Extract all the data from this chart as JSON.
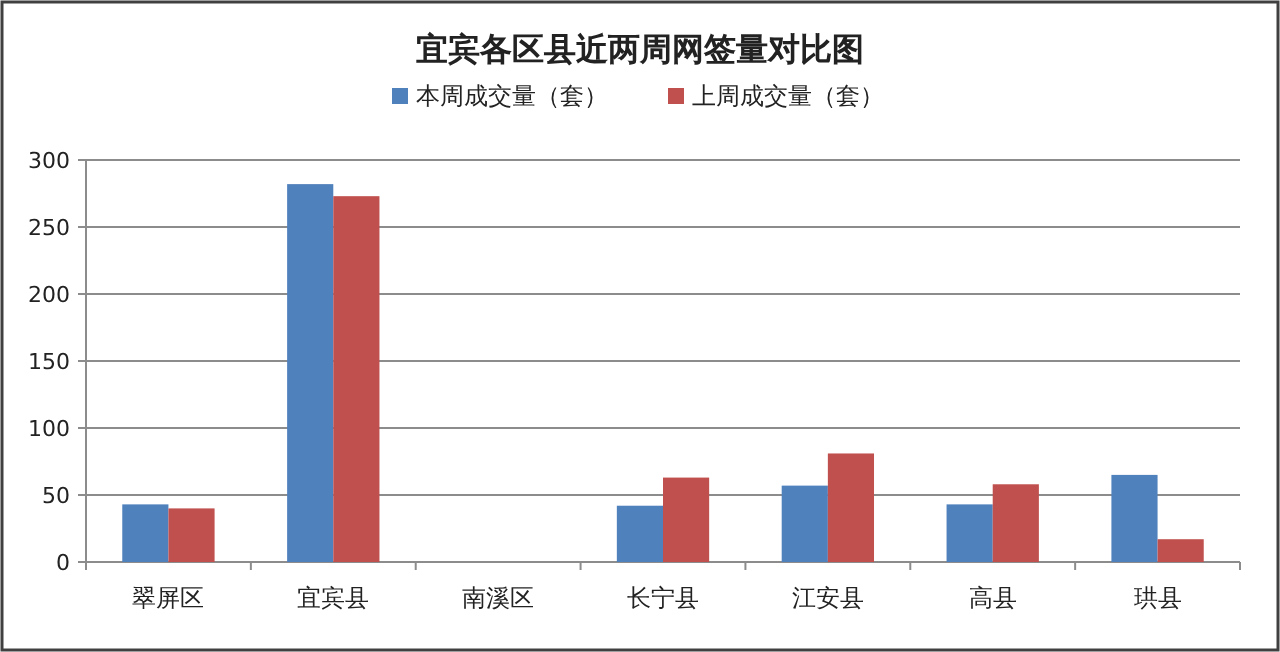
{
  "chart_data": {
    "type": "bar",
    "title": "宜宾各区县近两周网签量对比图",
    "categories": [
      "翠屏区",
      "宜宾县",
      "南溪区",
      "长宁县",
      "江安县",
      "高县",
      "珙县"
    ],
    "series": [
      {
        "name": "本周成交量（套）",
        "color": "#4f81bd",
        "values": [
          43,
          282,
          0,
          42,
          57,
          43,
          65
        ]
      },
      {
        "name": "上周成交量（套）",
        "color": "#c0504d",
        "values": [
          40,
          273,
          0,
          63,
          81,
          58,
          17
        ]
      }
    ],
    "ylim": [
      0,
      300
    ],
    "yticks": [
      0,
      50,
      100,
      150,
      200,
      250,
      300
    ],
    "grid": "y",
    "legend": "top"
  }
}
